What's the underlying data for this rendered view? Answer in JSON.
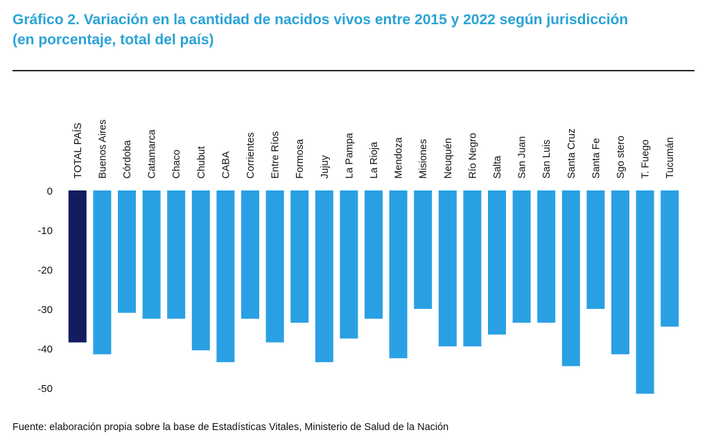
{
  "title": {
    "line1": "Gráfico 2. Variación en la cantidad de nacidos vivos entre 2015 y 2022 según jurisdicción",
    "line2": "(en porcentaje, total del país)"
  },
  "source": "Fuente: elaboración propia sobre la base de Estadísticas Vitales, Ministerio de Salud de la Nación",
  "colors": {
    "highlight": "#131c5e",
    "bar": "#2aa0e4",
    "title": "#2aa3d6"
  },
  "chart_data": {
    "type": "bar",
    "orientation": "vertical",
    "categories": [
      "TOTAL PAÍS",
      "Buenos Aires",
      "Córdoba",
      "Catamarca",
      "Chaco",
      "Chubut",
      "CABA",
      "Corrientes",
      "Entre Ríos",
      "Formosa",
      "Jujuy",
      "La Pampa",
      "La Rioja",
      "Mendoza",
      "Misiones",
      "Neuquén",
      "Río Negro",
      "Salta",
      "San Juan",
      "San Luis",
      "Santa Cruz",
      "Santa Fe",
      "Sgo stero",
      "T. Fuego",
      "Tucumán"
    ],
    "values": [
      -38.5,
      -41.5,
      -31,
      -32.5,
      -32.5,
      -40.5,
      -43.5,
      -32.5,
      -38.5,
      -33.5,
      -43.5,
      -37.5,
      -32.5,
      -42.5,
      -30,
      -39.5,
      -39.5,
      -36.5,
      -33.5,
      -33.5,
      -44.5,
      -30,
      -41.5,
      -51.5,
      -34.5
    ],
    "highlight_index": 0,
    "yticks": [
      0,
      -10,
      -20,
      -30,
      -40,
      -50
    ],
    "ylim": [
      -53,
      0
    ],
    "category_label_position": "top-rotated",
    "grid": false,
    "legend": false
  }
}
